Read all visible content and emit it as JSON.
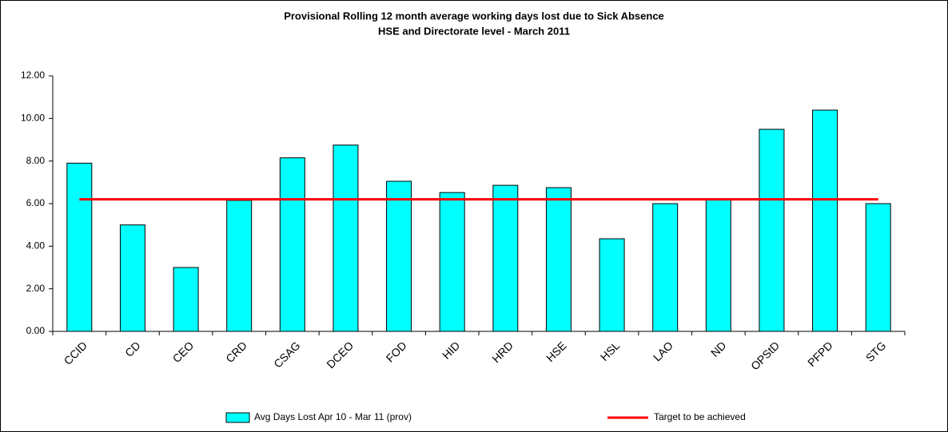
{
  "chart_data": {
    "type": "bar",
    "title": "Provisional Rolling 12 month average working days lost due to Sick Absence",
    "subtitle": "HSE and Directorate level - March 2011",
    "categories": [
      "CCID",
      "CD",
      "CEO",
      "CRD",
      "CSAG",
      "DCEO",
      "FOD",
      "HID",
      "HRD",
      "HSE",
      "HSL",
      "LAO",
      "ND",
      "OPStD",
      "PFPD",
      "STG"
    ],
    "series": [
      {
        "name": "Avg Days Lost Apr 10 - Mar 11 (prov)",
        "color": "#00ffff",
        "type": "bar",
        "values": [
          7.9,
          5.0,
          3.0,
          6.15,
          8.15,
          8.75,
          7.05,
          6.52,
          6.86,
          6.75,
          4.35,
          6.0,
          6.22,
          9.49,
          10.39,
          6.0
        ]
      },
      {
        "name": "Target to be achieved",
        "color": "#ff0000",
        "type": "line",
        "values": [
          6.2,
          6.2,
          6.2,
          6.2,
          6.2,
          6.2,
          6.2,
          6.2,
          6.2,
          6.2,
          6.2,
          6.2,
          6.2,
          6.2,
          6.2,
          6.2
        ]
      }
    ],
    "ylim": [
      0,
      12
    ],
    "yticks": [
      {
        "value": 0,
        "label": "0.00"
      },
      {
        "value": 2,
        "label": "2.00"
      },
      {
        "value": 4,
        "label": "4.00"
      },
      {
        "value": 6,
        "label": "6.00"
      },
      {
        "value": 8,
        "label": "8.00"
      },
      {
        "value": 10,
        "label": "10.00"
      },
      {
        "value": 12,
        "label": "12.00"
      }
    ],
    "legend": "bottom"
  }
}
